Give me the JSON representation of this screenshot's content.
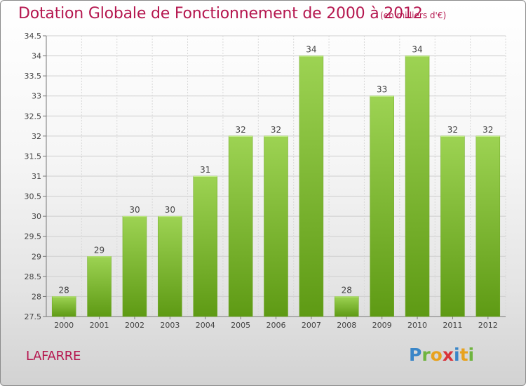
{
  "header": {
    "title": "Dotation Globale de Fonctionnement de 2000 à 2012",
    "unit": "(en milliers d'€)"
  },
  "footer": {
    "commune": "LAFARRE",
    "brand": [
      "P",
      "r",
      "o",
      "x",
      "i",
      "t",
      "i"
    ]
  },
  "colors": {
    "title": "#b5174f",
    "bar_light": "#9dd353",
    "bar_dark": "#5e9a14",
    "brand_x": "#d9343b"
  },
  "chart_data": {
    "type": "bar",
    "title": "Dotation Globale de Fonctionnement de 2000 à 2012",
    "xlabel": "",
    "ylabel": "",
    "categories": [
      "2000",
      "2001",
      "2002",
      "2003",
      "2004",
      "2005",
      "2006",
      "2007",
      "2008",
      "2009",
      "2010",
      "2011",
      "2012"
    ],
    "values": [
      28,
      29,
      30,
      30,
      31,
      32,
      32,
      34,
      28,
      33,
      34,
      32,
      32
    ],
    "ylim": [
      27.5,
      34.5
    ],
    "yticks": [
      "27.5",
      "28",
      "28.5",
      "29",
      "29.5",
      "30",
      "30.5",
      "31",
      "31.5",
      "32",
      "32.5",
      "33",
      "33.5",
      "34",
      "34.5"
    ],
    "grid": true,
    "legend": "none"
  }
}
